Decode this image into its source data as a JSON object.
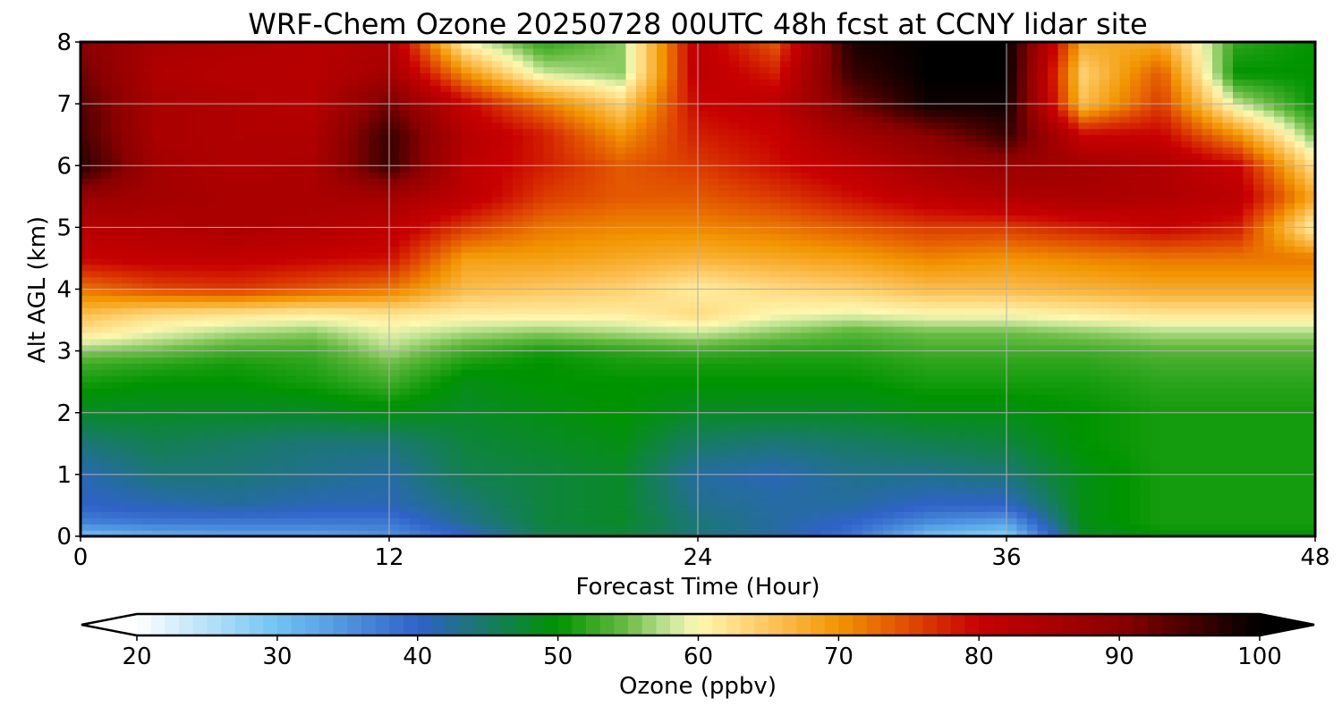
{
  "chart_data": {
    "type": "heatmap",
    "title": "WRF-Chem Ozone  20250728 00UTC 48h fcst at CCNY lidar site",
    "xlabel": "Forecast Time (Hour)",
    "ylabel": "Alt AGL (km)",
    "xlim": [
      0,
      48
    ],
    "ylim": [
      0,
      8
    ],
    "x_ticks": [
      "0",
      "12",
      "24",
      "36",
      "48"
    ],
    "y_ticks": [
      "0",
      "1",
      "2",
      "3",
      "4",
      "5",
      "6",
      "7",
      "8"
    ],
    "grid": true,
    "x": [
      0,
      3,
      6,
      9,
      12,
      15,
      18,
      21,
      24,
      27,
      30,
      33,
      36,
      39,
      42,
      45,
      48
    ],
    "y": [
      0,
      0.25,
      0.5,
      1,
      1.5,
      2,
      2.5,
      2.8,
      3.0,
      3.3,
      3.6,
      4,
      4.5,
      5,
      5.5,
      6,
      6.5,
      7,
      7.5,
      8
    ],
    "z": [
      [
        30,
        32,
        33,
        33,
        35,
        40,
        46,
        47,
        44,
        42,
        38,
        30,
        28,
        48,
        50,
        50,
        50
      ],
      [
        37,
        38,
        38,
        38,
        38,
        43,
        47,
        48,
        44,
        42,
        40,
        36,
        34,
        49,
        51,
        51,
        51
      ],
      [
        40,
        41,
        42,
        41,
        41,
        44,
        47,
        48,
        43,
        42,
        42,
        40,
        40,
        49,
        51,
        51,
        51
      ],
      [
        41,
        44,
        44,
        43,
        42,
        46,
        47,
        48,
        42,
        41,
        43,
        43,
        44,
        49,
        51,
        51,
        51
      ],
      [
        44,
        46,
        45,
        44,
        44,
        47,
        48,
        49,
        45,
        44,
        45,
        46,
        47,
        50,
        51,
        51,
        51
      ],
      [
        48,
        48,
        48,
        48,
        49,
        48,
        49,
        50,
        48,
        48,
        48,
        49,
        49,
        50,
        51,
        51,
        51
      ],
      [
        51,
        50,
        50,
        51,
        53,
        49,
        50,
        50,
        50,
        50,
        50,
        51,
        51,
        51,
        52,
        52,
        52
      ],
      [
        53,
        52,
        51,
        52,
        55,
        51,
        50,
        51,
        51,
        51,
        51,
        52,
        52,
        52,
        53,
        53,
        53
      ],
      [
        56,
        55,
        53,
        53,
        57,
        53,
        51,
        52,
        53,
        52,
        52,
        53,
        53,
        53,
        54,
        54,
        54
      ],
      [
        62,
        59,
        57,
        56,
        59,
        57,
        56,
        57,
        58,
        56,
        54,
        55,
        55,
        56,
        57,
        57,
        57
      ],
      [
        66,
        63,
        62,
        61,
        62,
        61,
        61,
        61,
        63,
        60,
        59,
        60,
        60,
        61,
        62,
        62,
        62
      ],
      [
        72,
        75,
        76,
        74,
        72,
        66,
        65,
        64,
        61,
        63,
        64,
        66,
        66,
        67,
        68,
        68,
        68
      ],
      [
        80,
        81,
        81,
        80,
        79,
        69,
        69,
        68,
        67,
        68,
        69,
        71,
        70,
        71,
        72,
        72,
        72
      ],
      [
        83,
        84,
        85,
        84,
        82,
        76,
        72,
        71,
        71,
        72,
        74,
        76,
        76,
        78,
        80,
        78,
        60
      ],
      [
        88,
        86,
        85,
        85,
        86,
        82,
        76,
        74,
        74,
        76,
        79,
        82,
        84,
        85,
        84,
        82,
        68
      ],
      [
        97,
        86,
        84,
        85,
        96,
        82,
        78,
        74,
        76,
        79,
        82,
        86,
        88,
        86,
        84,
        80,
        62
      ],
      [
        95,
        85,
        84,
        84,
        96,
        83,
        78,
        70,
        78,
        80,
        86,
        90,
        96,
        80,
        80,
        70,
        55
      ],
      [
        94,
        85,
        84,
        83,
        92,
        80,
        72,
        64,
        80,
        82,
        92,
        99,
        99,
        66,
        76,
        58,
        50
      ],
      [
        92,
        84,
        83,
        83,
        86,
        70,
        58,
        56,
        82,
        78,
        96,
        100,
        100,
        64,
        74,
        50,
        50
      ],
      [
        90,
        85,
        84,
        83,
        84,
        60,
        52,
        56,
        82,
        74,
        98,
        100,
        100,
        68,
        68,
        52,
        50
      ]
    ],
    "colorbar": {
      "label": "Ozone  (ppbv)",
      "min": 20,
      "max": 100,
      "ticks": [
        "20",
        "30",
        "40",
        "50",
        "60",
        "70",
        "80",
        "90",
        "100"
      ],
      "extend": "both"
    },
    "colormap": [
      [
        20,
        "#ffffff"
      ],
      [
        30,
        "#6fc4f2"
      ],
      [
        40,
        "#2f62c9"
      ],
      [
        50,
        "#009300"
      ],
      [
        55,
        "#6bbd45"
      ],
      [
        58,
        "#c8e69a"
      ],
      [
        60,
        "#fff8b0"
      ],
      [
        64,
        "#ffd070"
      ],
      [
        70,
        "#f29500"
      ],
      [
        75,
        "#e04a00"
      ],
      [
        80,
        "#c80000"
      ],
      [
        90,
        "#8b0000"
      ],
      [
        100,
        "#000000"
      ]
    ]
  }
}
